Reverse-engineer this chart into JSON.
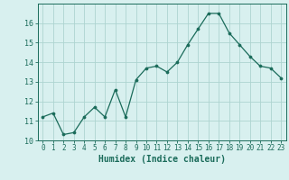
{
  "x": [
    0,
    1,
    2,
    3,
    4,
    5,
    6,
    7,
    8,
    9,
    10,
    11,
    12,
    13,
    14,
    15,
    16,
    17,
    18,
    19,
    20,
    21,
    22,
    23
  ],
  "y": [
    11.2,
    11.4,
    10.3,
    10.4,
    11.2,
    11.7,
    11.2,
    12.6,
    11.2,
    13.1,
    13.7,
    13.8,
    13.5,
    14.0,
    14.9,
    15.7,
    16.5,
    16.5,
    15.5,
    14.9,
    14.3,
    13.8,
    13.7,
    13.2
  ],
  "xlabel": "Humidex (Indice chaleur)",
  "ylim": [
    10,
    17
  ],
  "xlim": [
    -0.5,
    23.5
  ],
  "yticks": [
    10,
    11,
    12,
    13,
    14,
    15,
    16
  ],
  "xticks": [
    0,
    1,
    2,
    3,
    4,
    5,
    6,
    7,
    8,
    9,
    10,
    11,
    12,
    13,
    14,
    15,
    16,
    17,
    18,
    19,
    20,
    21,
    22,
    23
  ],
  "line_color": "#1a6b5a",
  "marker_color": "#1a6b5a",
  "bg_color": "#d8f0ef",
  "grid_color": "#aed4d0",
  "axes_color": "#1a6b5a",
  "tick_fontsize": 5.5,
  "xlabel_fontsize": 7.0,
  "linewidth": 0.9,
  "markersize": 2.2
}
